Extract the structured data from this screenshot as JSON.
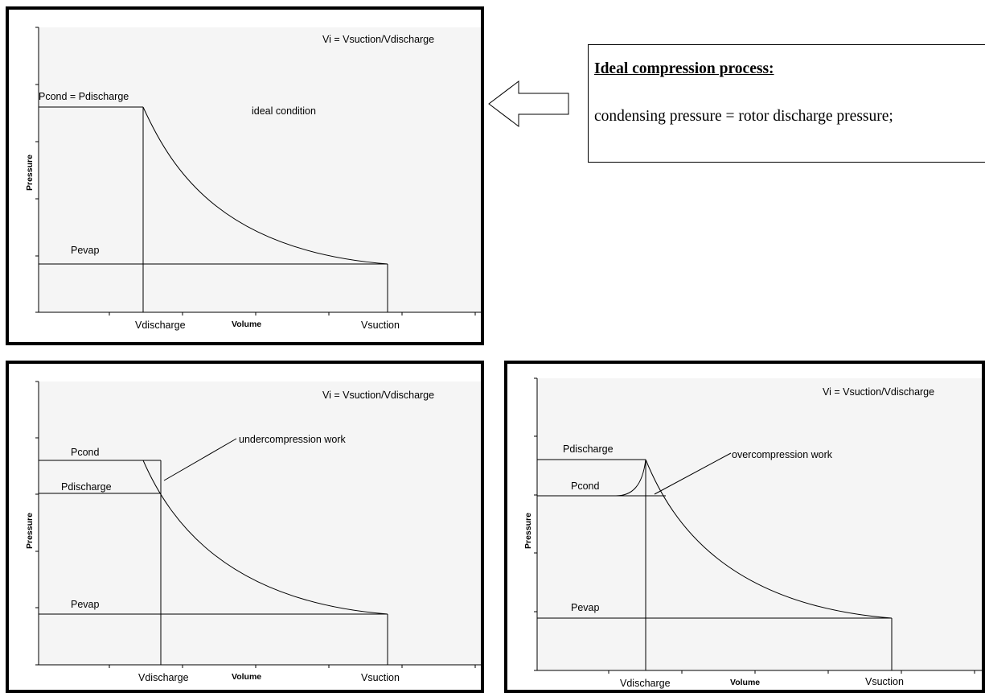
{
  "panels": {
    "ideal": {
      "vi": "Vi = Vsuction/Vdischarge",
      "condition": "ideal condition",
      "p_high": "Pcond  = Pdischarge",
      "p_low": "Pevap",
      "ylabel": "Pressure",
      "xlabel": "Volume",
      "v_discharge": "Vdischarge",
      "v_suction": "Vsuction"
    },
    "under": {
      "vi": "Vi = Vsuction/Vdischarge",
      "work": "undercompression work",
      "p_cond": "Pcond",
      "p_discharge": "Pdischarge",
      "p_low": "Pevap",
      "ylabel": "Pressure",
      "xlabel": "Volume",
      "v_discharge": "Vdischarge",
      "v_suction": "Vsuction"
    },
    "over": {
      "vi": "Vi = Vsuction/Vdischarge",
      "work": "overcompression work",
      "p_discharge": "Pdischarge",
      "p_cond": "Pcond",
      "p_low": "Pevap",
      "ylabel": "Pressure",
      "xlabel": "Volume",
      "v_discharge": "Vdischarge",
      "v_suction": "Vsuction"
    }
  },
  "callout": {
    "title": "Ideal compression process:",
    "text": "condensing pressure = rotor discharge pressure;"
  }
}
